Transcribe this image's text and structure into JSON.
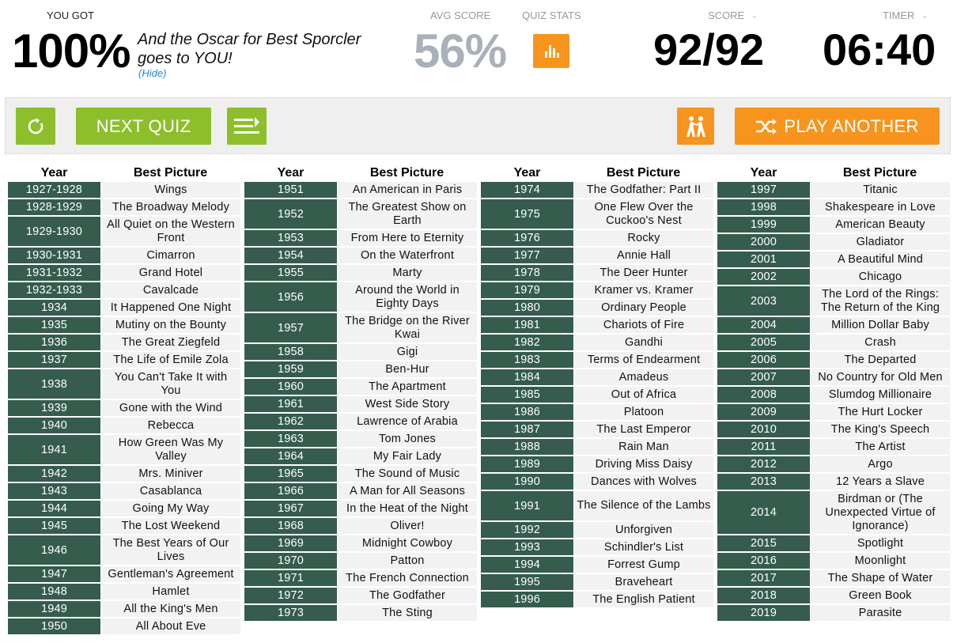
{
  "result": {
    "you_got_label": "YOU GOT",
    "percent": "100%",
    "message": "And the Oscar for Best Sporcler goes to YOU!",
    "hide_label": "(Hide)",
    "avg_label": "AVG SCORE",
    "avg_value": "56%",
    "stats_label": "QUIZ STATS",
    "score_label": "SCORE",
    "score_value": "92/92",
    "timer_label": "TIMER",
    "timer_value": "06:40"
  },
  "actions": {
    "next_quiz_label": "NEXT QUIZ",
    "play_another_label": "PLAY ANOTHER"
  },
  "colors": {
    "green": "#8cbf2b",
    "orange": "#f7941d",
    "year_cell": "#355c4d",
    "answer_cell": "#f2f2f2",
    "avg_gray": "#a9b0b8"
  },
  "table": {
    "header_year": "Year",
    "header_picture": "Best Picture",
    "columns": [
      [
        {
          "year": "1927-1928",
          "picture": "Wings"
        },
        {
          "year": "1928-1929",
          "picture": "The Broadway Melody"
        },
        {
          "year": "1929-1930",
          "picture": "All Quiet on the Western Front"
        },
        {
          "year": "1930-1931",
          "picture": "Cimarron"
        },
        {
          "year": "1931-1932",
          "picture": "Grand Hotel"
        },
        {
          "year": "1932-1933",
          "picture": "Cavalcade"
        },
        {
          "year": "1934",
          "picture": "It Happened One Night"
        },
        {
          "year": "1935",
          "picture": "Mutiny on the Bounty"
        },
        {
          "year": "1936",
          "picture": "The Great Ziegfeld"
        },
        {
          "year": "1937",
          "picture": "The Life of Emile Zola"
        },
        {
          "year": "1938",
          "picture": "You Can't Take It with You"
        },
        {
          "year": "1939",
          "picture": "Gone with the Wind"
        },
        {
          "year": "1940",
          "picture": "Rebecca"
        },
        {
          "year": "1941",
          "picture": "How Green Was My Valley"
        },
        {
          "year": "1942",
          "picture": "Mrs. Miniver"
        },
        {
          "year": "1943",
          "picture": "Casablanca"
        },
        {
          "year": "1944",
          "picture": "Going My Way"
        },
        {
          "year": "1945",
          "picture": "The Lost Weekend"
        },
        {
          "year": "1946",
          "picture": "The Best Years of Our Lives"
        },
        {
          "year": "1947",
          "picture": "Gentleman's Agreement"
        },
        {
          "year": "1948",
          "picture": "Hamlet"
        },
        {
          "year": "1949",
          "picture": "All the King's Men"
        },
        {
          "year": "1950",
          "picture": "All About Eve"
        }
      ],
      [
        {
          "year": "1951",
          "picture": "An American in Paris"
        },
        {
          "year": "1952",
          "picture": "The Greatest Show on Earth"
        },
        {
          "year": "1953",
          "picture": "From Here to Eternity"
        },
        {
          "year": "1954",
          "picture": "On the Waterfront"
        },
        {
          "year": "1955",
          "picture": "Marty"
        },
        {
          "year": "1956",
          "picture": "Around the World in Eighty Days"
        },
        {
          "year": "1957",
          "picture": "The Bridge on the River Kwai"
        },
        {
          "year": "1958",
          "picture": "Gigi"
        },
        {
          "year": "1959",
          "picture": "Ben-Hur"
        },
        {
          "year": "1960",
          "picture": "The Apartment"
        },
        {
          "year": "1961",
          "picture": "West Side Story"
        },
        {
          "year": "1962",
          "picture": "Lawrence of Arabia"
        },
        {
          "year": "1963",
          "picture": "Tom Jones"
        },
        {
          "year": "1964",
          "picture": "My Fair Lady"
        },
        {
          "year": "1965",
          "picture": "The Sound of Music"
        },
        {
          "year": "1966",
          "picture": "A Man for All Seasons"
        },
        {
          "year": "1967",
          "picture": "In the Heat of the Night"
        },
        {
          "year": "1968",
          "picture": "Oliver!"
        },
        {
          "year": "1969",
          "picture": "Midnight Cowboy"
        },
        {
          "year": "1970",
          "picture": "Patton"
        },
        {
          "year": "1971",
          "picture": "The French Connection"
        },
        {
          "year": "1972",
          "picture": "The Godfather"
        },
        {
          "year": "1973",
          "picture": "The Sting"
        }
      ],
      [
        {
          "year": "1974",
          "picture": "The Godfather: Part II"
        },
        {
          "year": "1975",
          "picture": "One Flew Over the Cuckoo's Nest"
        },
        {
          "year": "1976",
          "picture": "Rocky"
        },
        {
          "year": "1977",
          "picture": "Annie Hall"
        },
        {
          "year": "1978",
          "picture": "The Deer Hunter"
        },
        {
          "year": "1979",
          "picture": "Kramer vs. Kramer"
        },
        {
          "year": "1980",
          "picture": "Ordinary People"
        },
        {
          "year": "1981",
          "picture": "Chariots of Fire"
        },
        {
          "year": "1982",
          "picture": "Gandhi"
        },
        {
          "year": "1983",
          "picture": "Terms of Endearment"
        },
        {
          "year": "1984",
          "picture": "Amadeus"
        },
        {
          "year": "1985",
          "picture": "Out of Africa"
        },
        {
          "year": "1986",
          "picture": "Platoon"
        },
        {
          "year": "1987",
          "picture": "The Last Emperor"
        },
        {
          "year": "1988",
          "picture": "Rain Man"
        },
        {
          "year": "1989",
          "picture": "Driving Miss Daisy"
        },
        {
          "year": "1990",
          "picture": "Dances with Wolves"
        },
        {
          "year": "1991",
          "picture": "The Silence of the Lambs"
        },
        {
          "year": "1992",
          "picture": "Unforgiven"
        },
        {
          "year": "1993",
          "picture": "Schindler's List"
        },
        {
          "year": "1994",
          "picture": "Forrest Gump"
        },
        {
          "year": "1995",
          "picture": "Braveheart"
        },
        {
          "year": "1996",
          "picture": "The English Patient"
        }
      ],
      [
        {
          "year": "1997",
          "picture": "Titanic"
        },
        {
          "year": "1998",
          "picture": "Shakespeare in Love"
        },
        {
          "year": "1999",
          "picture": "American Beauty"
        },
        {
          "year": "2000",
          "picture": "Gladiator"
        },
        {
          "year": "2001",
          "picture": "A Beautiful Mind"
        },
        {
          "year": "2002",
          "picture": "Chicago"
        },
        {
          "year": "2003",
          "picture": "The Lord of the Rings: The Return of the King"
        },
        {
          "year": "2004",
          "picture": "Million Dollar Baby"
        },
        {
          "year": "2005",
          "picture": "Crash"
        },
        {
          "year": "2006",
          "picture": "The Departed"
        },
        {
          "year": "2007",
          "picture": "No Country for Old Men"
        },
        {
          "year": "2008",
          "picture": "Slumdog Millionaire"
        },
        {
          "year": "2009",
          "picture": "The Hurt Locker"
        },
        {
          "year": "2010",
          "picture": "The King's Speech"
        },
        {
          "year": "2011",
          "picture": "The Artist"
        },
        {
          "year": "2012",
          "picture": "Argo"
        },
        {
          "year": "2013",
          "picture": "12 Years a Slave"
        },
        {
          "year": "2014",
          "picture": "Birdman or (The Unexpected Virtue of Ignorance)"
        },
        {
          "year": "2015",
          "picture": "Spotlight"
        },
        {
          "year": "2016",
          "picture": "Moonlight"
        },
        {
          "year": "2017",
          "picture": "The Shape of Water"
        },
        {
          "year": "2018",
          "picture": "Green Book"
        },
        {
          "year": "2019",
          "picture": "Parasite"
        }
      ]
    ]
  }
}
